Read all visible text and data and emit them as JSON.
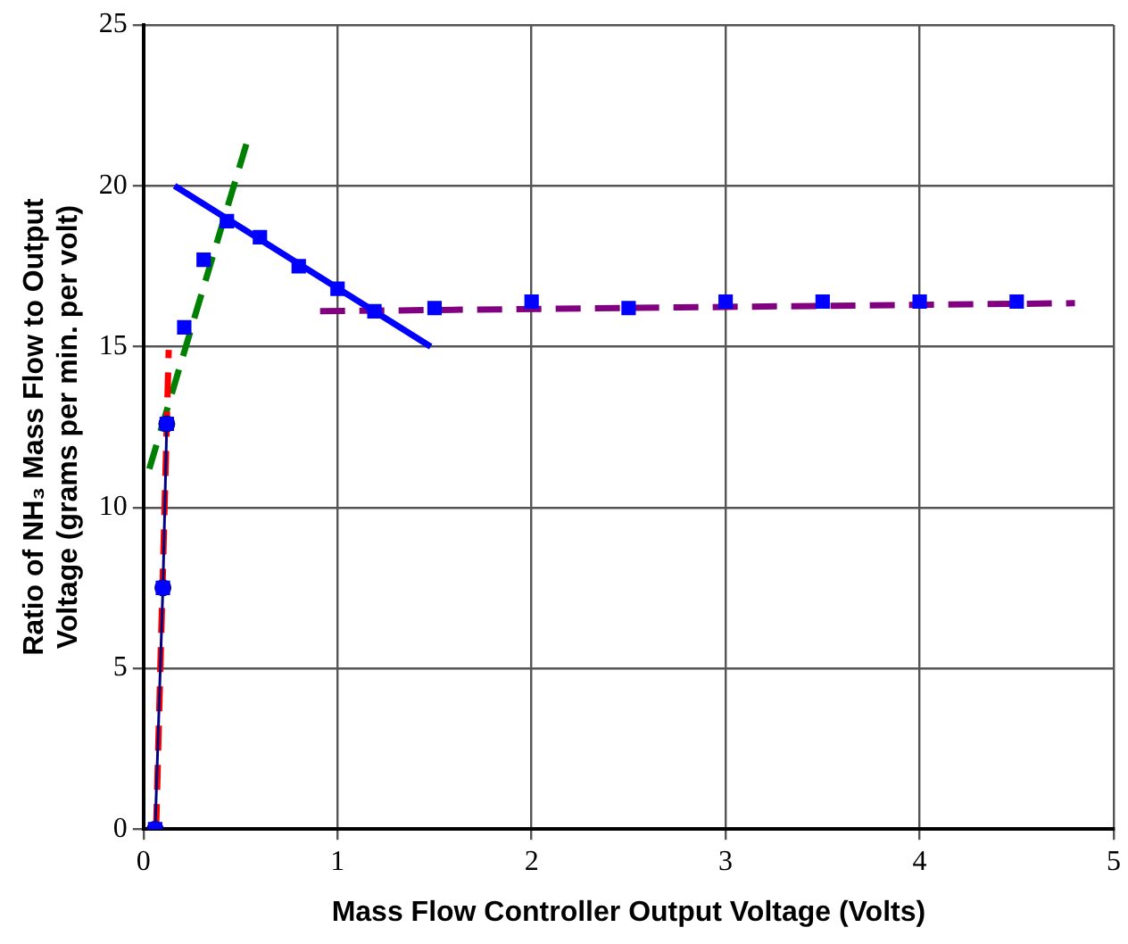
{
  "chart_data": {
    "type": "scatter",
    "xlabel": "Mass Flow Controller Output Voltage (Volts)",
    "ylabel": "Ratio of NH₃ Mass Flow to Output Voltage (grams per min. per volt)",
    "xlim": [
      0,
      5
    ],
    "xticks": [
      0,
      1,
      2,
      3,
      4,
      5
    ],
    "ylim": [
      0,
      25
    ],
    "yticks": [
      0,
      5,
      10,
      15,
      20,
      25
    ],
    "grid": true,
    "legend": false,
    "series": [
      {
        "type": "line",
        "color": "#000080",
        "marker": "circle",
        "line_style": "solid",
        "x": [
          0.06,
          0.1,
          0.12
        ],
        "values": [
          0,
          7.5,
          12.6
        ]
      },
      {
        "type": "line",
        "color": "#ff0000",
        "marker": "none",
        "line_style": "dashed",
        "x": [
          0.065,
          0.13
        ],
        "values": [
          0,
          14.9
        ]
      },
      {
        "type": "line",
        "color": "#008000",
        "marker": "none",
        "line_style": "dashed",
        "x": [
          0.03,
          0.53
        ],
        "values": [
          11.2,
          21.3
        ]
      },
      {
        "type": "line",
        "color": "#0000ff",
        "marker": "none",
        "line_style": "solid",
        "x": [
          0.16,
          1.48
        ],
        "values": [
          20.0,
          15.0
        ]
      },
      {
        "type": "line",
        "color": "#800080",
        "marker": "none",
        "line_style": "dashed",
        "x": [
          0.91,
          4.8
        ],
        "values": [
          16.1,
          16.35
        ]
      },
      {
        "type": "scatter",
        "color": "#0000ff",
        "marker": "square",
        "x": [
          0.06,
          0.1,
          0.12,
          0.21,
          0.31,
          0.43,
          0.6,
          0.8,
          1.0,
          1.19,
          1.5,
          2.0,
          2.5,
          3.0,
          3.5,
          4.0,
          4.5
        ],
        "values": [
          0,
          7.5,
          12.6,
          15.6,
          17.7,
          18.9,
          18.4,
          17.5,
          16.8,
          16.1,
          16.2,
          16.4,
          16.2,
          16.4,
          16.4,
          16.4,
          16.4
        ]
      }
    ]
  }
}
